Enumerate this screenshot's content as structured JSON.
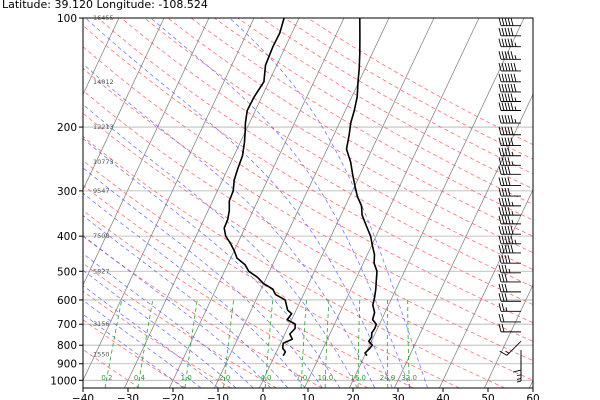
{
  "header": {
    "text": "Latitude: 39.120 Longitude: -108.524"
  },
  "chart_data": {
    "type": "line",
    "title": "",
    "xlabel": "",
    "ylabel": "",
    "x_range": [
      -40,
      60
    ],
    "y_range_hpa": [
      1050,
      100
    ],
    "y_scale": "log",
    "grid": true,
    "y_ticks": [
      100,
      200,
      300,
      400,
      500,
      600,
      700,
      800,
      900,
      1000
    ],
    "x_ticks": [
      -40,
      -30,
      -20,
      -10,
      0,
      10,
      20,
      30,
      40,
      50,
      60
    ],
    "height_labels": [
      {
        "p": 100,
        "text": "16455"
      },
      {
        "p": 150,
        "text": "14012"
      },
      {
        "p": 200,
        "text": "12213"
      },
      {
        "p": 250,
        "text": "10773"
      },
      {
        "p": 300,
        "text": "9547"
      },
      {
        "p": 400,
        "text": "7508"
      },
      {
        "p": 500,
        "text": "5827"
      },
      {
        "p": 700,
        "text": "3156"
      },
      {
        "p": 850,
        "text": "1550"
      }
    ],
    "mixing_ratio_labels": [
      "0.2",
      "0.4",
      "1.0",
      "2.0",
      "4.0",
      "7.0",
      "10.0",
      "16.0",
      "24.0",
      "32.0"
    ],
    "mixing_ratio_values": [
      0.2,
      0.4,
      1.0,
      2.0,
      4.0,
      7.0,
      10.0,
      16.0,
      24.0,
      32.0
    ],
    "colors": {
      "dry_adiabat": "#ff4d4d",
      "moist_adiabat": "#4d4dff",
      "mixing_ratio": "#2ca02c",
      "isotherm": "#888888",
      "profile": "#000000"
    },
    "series": [
      {
        "key": "temperature",
        "points": [
          [
            855,
            20.5
          ],
          [
            840,
            19.8
          ],
          [
            820,
            20.3
          ],
          [
            800,
            20.6
          ],
          [
            780,
            19.4
          ],
          [
            760,
            19.6
          ],
          [
            740,
            19.2
          ],
          [
            720,
            19.4
          ],
          [
            700,
            19.3
          ],
          [
            680,
            18.0
          ],
          [
            650,
            17.7
          ],
          [
            620,
            16.5
          ],
          [
            590,
            16.1
          ],
          [
            560,
            15.5
          ],
          [
            530,
            14.7
          ],
          [
            500,
            13.9
          ],
          [
            475,
            12.4
          ],
          [
            450,
            11.6
          ],
          [
            425,
            10.2
          ],
          [
            400,
            8.8
          ],
          [
            375,
            6.8
          ],
          [
            350,
            4.7
          ],
          [
            330,
            3.6
          ],
          [
            310,
            1.6
          ],
          [
            290,
            0.0
          ],
          [
            270,
            -1.7
          ],
          [
            250,
            -3.4
          ],
          [
            230,
            -5.7
          ],
          [
            210,
            -6.6
          ],
          [
            195,
            -7.5
          ],
          [
            180,
            -8.0
          ],
          [
            165,
            -8.8
          ],
          [
            150,
            -10.2
          ],
          [
            138,
            -11.3
          ],
          [
            125,
            -12.8
          ],
          [
            112,
            -14.6
          ],
          [
            100,
            -16.5
          ]
        ]
      },
      {
        "key": "dewpoint",
        "points": [
          [
            855,
            1.9
          ],
          [
            835,
            2.0
          ],
          [
            815,
            1.0
          ],
          [
            790,
            0.6
          ],
          [
            770,
            2.2
          ],
          [
            745,
            1.1
          ],
          [
            720,
            1.7
          ],
          [
            700,
            1.3
          ],
          [
            680,
            -1.0
          ],
          [
            655,
            -0.6
          ],
          [
            640,
            -1.9
          ],
          [
            620,
            -2.7
          ],
          [
            600,
            -3.5
          ],
          [
            580,
            -6.2
          ],
          [
            560,
            -7.4
          ],
          [
            540,
            -10.1
          ],
          [
            520,
            -12.0
          ],
          [
            500,
            -14.6
          ],
          [
            480,
            -16.1
          ],
          [
            460,
            -18.6
          ],
          [
            440,
            -19.9
          ],
          [
            420,
            -21.5
          ],
          [
            400,
            -23.4
          ],
          [
            380,
            -24.6
          ],
          [
            360,
            -24.7
          ],
          [
            340,
            -25.3
          ],
          [
            320,
            -26.3
          ],
          [
            300,
            -26.5
          ],
          [
            280,
            -27.4
          ],
          [
            260,
            -27.8
          ],
          [
            240,
            -28.1
          ],
          [
            220,
            -29.1
          ],
          [
            205,
            -30.1
          ],
          [
            195,
            -30.9
          ],
          [
            180,
            -31.8
          ],
          [
            165,
            -31.7
          ],
          [
            150,
            -31.1
          ],
          [
            135,
            -32.5
          ],
          [
            120,
            -32.8
          ],
          [
            110,
            -32.7
          ],
          [
            100,
            -33.3
          ]
        ]
      }
    ],
    "wind_barbs": [
      {
        "p": 105,
        "dir": "W",
        "kt": 50
      },
      {
        "p": 112,
        "dir": "W",
        "kt": 50
      },
      {
        "p": 120,
        "dir": "W",
        "kt": 55
      },
      {
        "p": 130,
        "dir": "W",
        "kt": 55
      },
      {
        "p": 140,
        "dir": "W",
        "kt": 60
      },
      {
        "p": 150,
        "dir": "W",
        "kt": 60
      },
      {
        "p": 160,
        "dir": "W",
        "kt": 60
      },
      {
        "p": 170,
        "dir": "W",
        "kt": 55
      },
      {
        "p": 180,
        "dir": "W",
        "kt": 55
      },
      {
        "p": 195,
        "dir": "W",
        "kt": 55
      },
      {
        "p": 210,
        "dir": "W",
        "kt": 50
      },
      {
        "p": 225,
        "dir": "W",
        "kt": 50
      },
      {
        "p": 240,
        "dir": "W",
        "kt": 45
      },
      {
        "p": 255,
        "dir": "W",
        "kt": 45
      },
      {
        "p": 270,
        "dir": "W",
        "kt": 40
      },
      {
        "p": 290,
        "dir": "W",
        "kt": 40
      },
      {
        "p": 310,
        "dir": "W",
        "kt": 40
      },
      {
        "p": 330,
        "dir": "W",
        "kt": 45
      },
      {
        "p": 350,
        "dir": "W",
        "kt": 45
      },
      {
        "p": 370,
        "dir": "W",
        "kt": 45
      },
      {
        "p": 395,
        "dir": "W",
        "kt": 50
      },
      {
        "p": 420,
        "dir": "W",
        "kt": 55
      },
      {
        "p": 445,
        "dir": "W",
        "kt": 50
      },
      {
        "p": 475,
        "dir": "W",
        "kt": 40
      },
      {
        "p": 505,
        "dir": "W",
        "kt": 35
      },
      {
        "p": 535,
        "dir": "W",
        "kt": 30
      },
      {
        "p": 570,
        "dir": "W",
        "kt": 30
      },
      {
        "p": 605,
        "dir": "W",
        "kt": 30
      },
      {
        "p": 645,
        "dir": "W",
        "kt": 25
      },
      {
        "p": 690,
        "dir": "W",
        "kt": 20
      },
      {
        "p": 735,
        "dir": "W",
        "kt": 20
      },
      {
        "p": 780,
        "dir": "SW",
        "kt": 15
      },
      {
        "p": 825,
        "dir": "S",
        "kt": 10
      },
      {
        "p": 850,
        "dir": "S",
        "kt": 5
      },
      {
        "p": 870,
        "dir": "S",
        "kt": 5
      },
      {
        "p": 885,
        "dir": "S",
        "kt": 5
      }
    ]
  }
}
